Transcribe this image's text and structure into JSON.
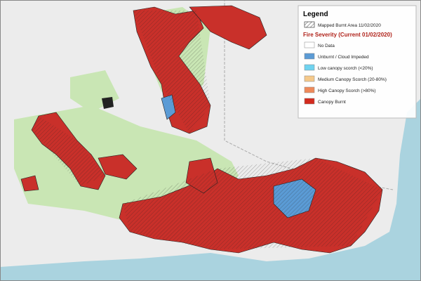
{
  "legend": {
    "title": "Legend",
    "burnt_area": "Mapped Burnt Area 11/02/2020",
    "severity_title": "Fire Severity (Current 01/02/2020)",
    "items": [
      {
        "label": "No Data",
        "color": "#ffffff"
      },
      {
        "label": "Unburnt / Cloud Impeded",
        "color": "#5b9bd5"
      },
      {
        "label": "Low canopy scorch (<20%)",
        "color": "#6fd3f0"
      },
      {
        "label": "Medium Canopy Scorch (20-80%)",
        "color": "#f5c98a"
      },
      {
        "label": "High Canopy Scorch (>80%)",
        "color": "#ef8a5a"
      },
      {
        "label": "Canopy Burnt",
        "color": "#d32a1e"
      }
    ]
  }
}
